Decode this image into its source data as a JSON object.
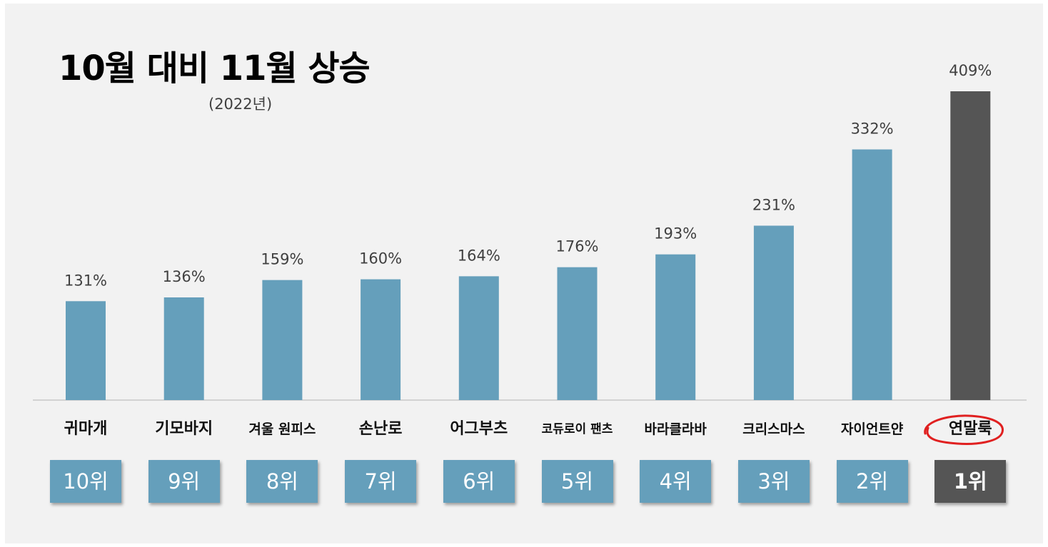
{
  "title": "10월 대비 11월 상승",
  "subtitle": "(2022년)",
  "colors": {
    "bar": "#659fbb",
    "highlight": "#555555",
    "circle": "#e02020"
  },
  "chart_data": {
    "type": "bar",
    "categories": [
      "귀마개",
      "기모바지",
      "겨울 원피스",
      "손난로",
      "어그부츠",
      "코듀로이 팬츠",
      "바라클라바",
      "크리스마스",
      "자이언트얀",
      "연말룩"
    ],
    "values": [
      131,
      136,
      159,
      160,
      164,
      176,
      193,
      231,
      332,
      409
    ],
    "value_labels": [
      "131%",
      "136%",
      "159%",
      "160%",
      "164%",
      "176%",
      "193%",
      "231%",
      "332%",
      "409%"
    ],
    "ranks": [
      "10위",
      "9위",
      "8위",
      "7위",
      "6위",
      "5위",
      "4위",
      "3위",
      "2위",
      "1위"
    ],
    "highlight_category": "연말룩",
    "ylim": [
      0,
      409
    ],
    "grid": false
  }
}
